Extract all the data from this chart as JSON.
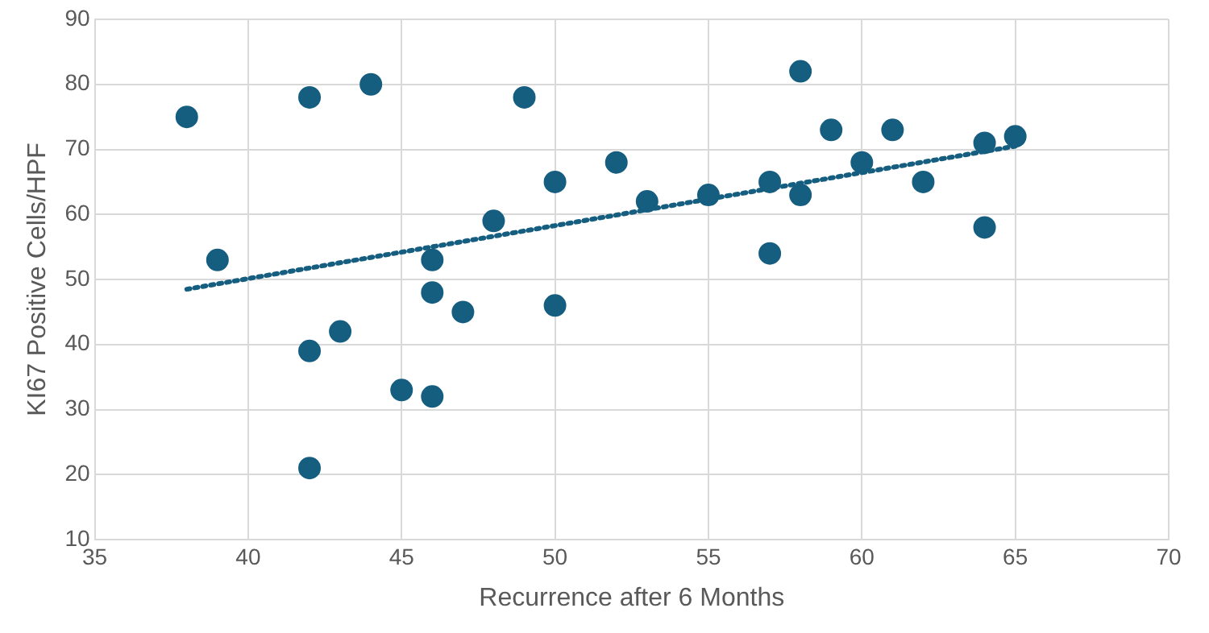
{
  "chart_data": {
    "type": "scatter",
    "xlabel": "Recurrence after 6 Months",
    "ylabel": "KI67 Positive Cells/HPF",
    "xlim": [
      35,
      70
    ],
    "xticks": [
      35,
      40,
      45,
      50,
      55,
      60,
      65,
      70
    ],
    "ylim": [
      10,
      90
    ],
    "yticks": [
      10,
      20,
      30,
      40,
      50,
      60,
      70,
      80,
      90
    ],
    "grid": true,
    "legend": false,
    "marker": "circle",
    "series": [
      {
        "type": "scatter",
        "color": "#165e80",
        "x": [
          38,
          39,
          42,
          44,
          42,
          43,
          42,
          45,
          46,
          46,
          46,
          47,
          48,
          49,
          50,
          50,
          52,
          53,
          55,
          57,
          57,
          58,
          58,
          59,
          60,
          61,
          62,
          64,
          64,
          65
        ],
        "values": [
          75,
          53,
          78,
          80,
          39,
          42,
          21,
          33,
          32,
          53,
          48,
          45,
          59,
          78,
          65,
          46,
          68,
          62,
          63,
          65,
          54,
          82,
          63,
          73,
          68,
          73,
          65,
          71,
          58,
          72
        ]
      },
      {
        "type": "line",
        "color": "#165e80",
        "line_style": "dotted",
        "marker": "none",
        "x": [
          38,
          65
        ],
        "values": [
          48.5,
          70.5
        ]
      }
    ]
  }
}
